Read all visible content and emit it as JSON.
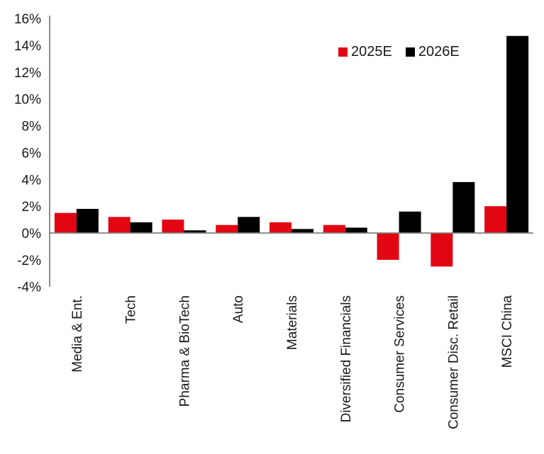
{
  "chart_data": {
    "type": "bar",
    "title": "",
    "xlabel": "",
    "ylabel": "",
    "categories": [
      "Media & Ent.",
      "Tech",
      "Pharma & BioTech",
      "Auto",
      "Materials",
      "Diversified Financials",
      "Consumer Services",
      "Consumer Disc. Retail",
      "MSCI China"
    ],
    "series": [
      {
        "name": "2025E",
        "color": "#E20613",
        "values": [
          1.5,
          1.2,
          1.0,
          0.6,
          0.8,
          0.6,
          -2.0,
          -2.5,
          2.0
        ]
      },
      {
        "name": "2026E",
        "color": "#000000",
        "values": [
          1.8,
          0.8,
          0.2,
          1.2,
          0.3,
          0.4,
          1.6,
          3.8,
          14.7
        ]
      }
    ],
    "ylim": [
      -4,
      16
    ],
    "ytick_step": 2,
    "ytick_suffix": "%",
    "grid": false,
    "legend_position": "top-right",
    "axis_color": "#808080",
    "text_color": "#1a1a1a"
  }
}
